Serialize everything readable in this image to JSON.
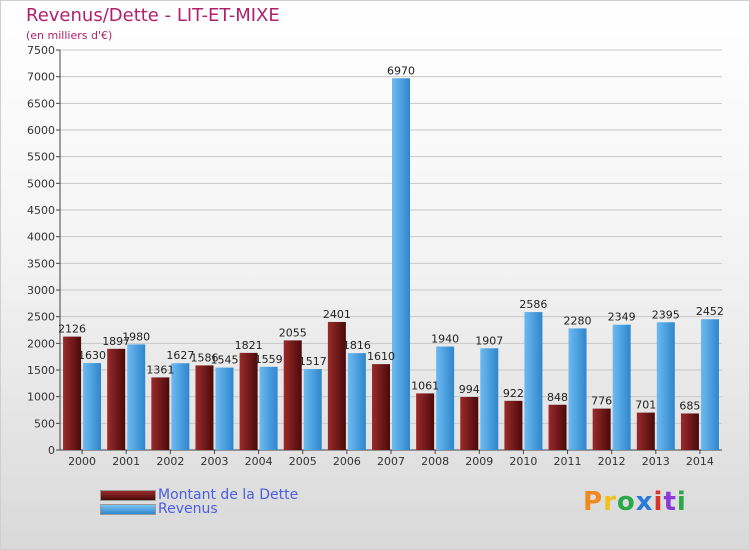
{
  "chart_data": {
    "type": "bar",
    "title": "Revenus/Dette - LIT-ET-MIXE",
    "subtitle": "(en milliers d'€)",
    "categories": [
      "2000",
      "2001",
      "2002",
      "2003",
      "2004",
      "2005",
      "2006",
      "2007",
      "2008",
      "2009",
      "2010",
      "2011",
      "2012",
      "2013",
      "2014"
    ],
    "series": [
      {
        "name": "Montant de la Dette",
        "color": "#7b1717",
        "values": [
          2126,
          1897,
          1361,
          1586,
          1821,
          2055,
          2401,
          1610,
          1061,
          994,
          922,
          848,
          776,
          701,
          685
        ]
      },
      {
        "name": "Revenus",
        "color": "#4aa6e8",
        "values": [
          1630,
          1980,
          1627,
          1545,
          1559,
          1517,
          1816,
          6970,
          1940,
          1907,
          2586,
          2280,
          2349,
          2395,
          2452
        ]
      }
    ],
    "ylim": [
      0,
      7500
    ],
    "yticks": [
      0,
      500,
      1000,
      1500,
      2000,
      2500,
      3000,
      3500,
      4000,
      4500,
      5000,
      5500,
      6000,
      6500,
      7000,
      7500
    ],
    "grid": true,
    "legend_position": "bottom-left"
  },
  "logo_text": "Proxiti",
  "logo_colors": [
    "#f08a1e",
    "#f0c21e",
    "#2aa84a",
    "#2a7ad8",
    "#d8342a",
    "#8a3ad8",
    "#2aa84a"
  ]
}
